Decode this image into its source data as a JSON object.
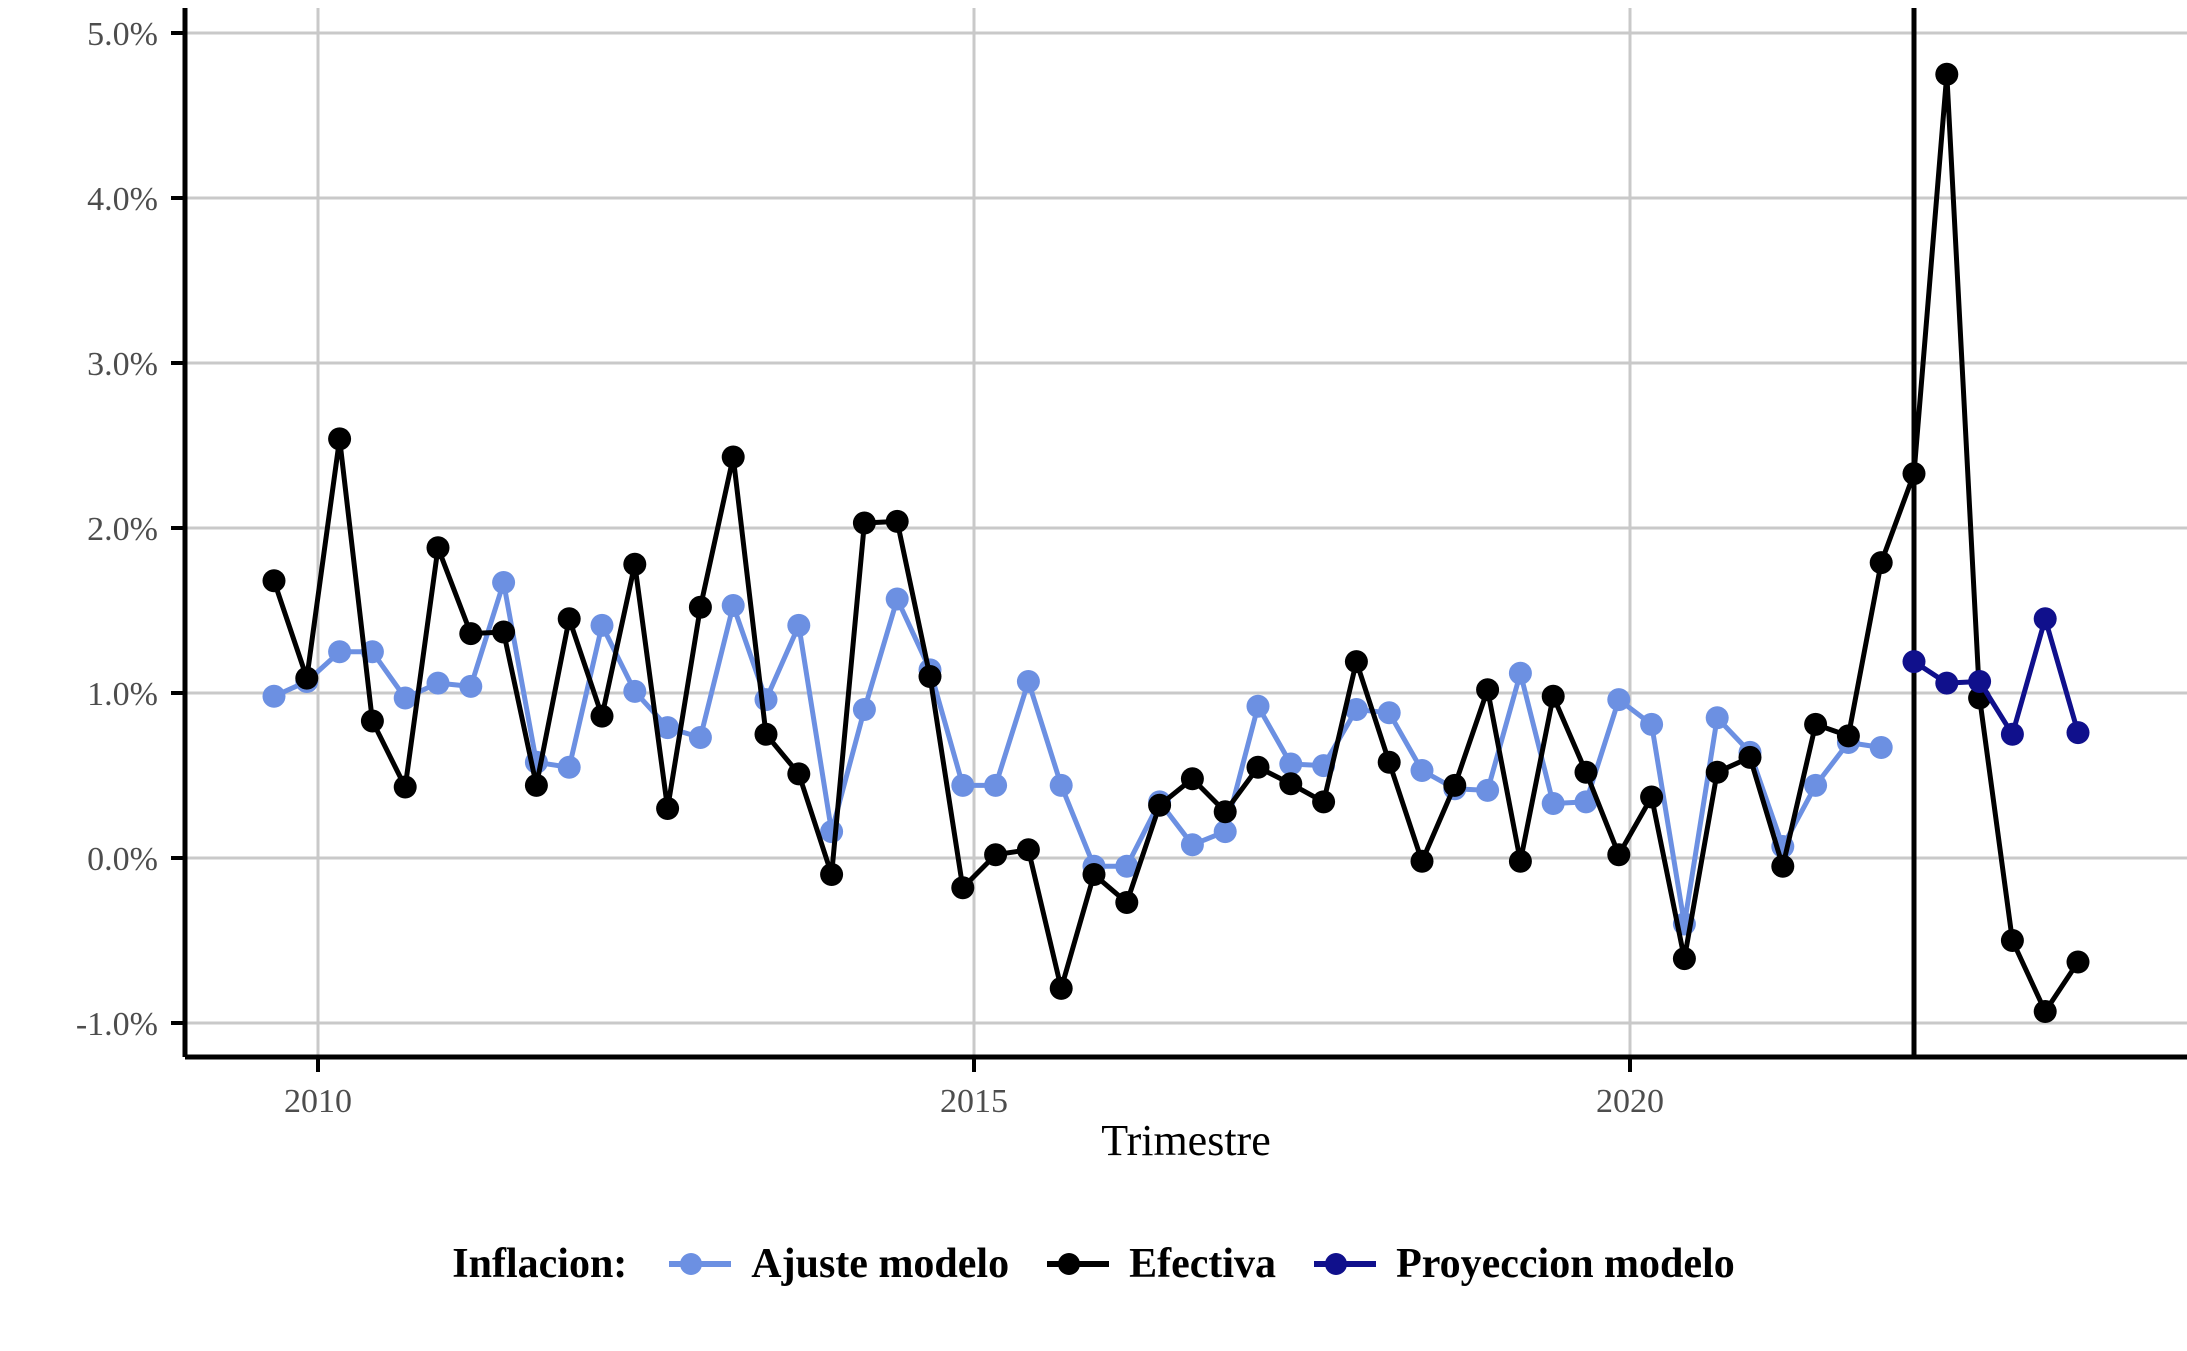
{
  "chart_data": {
    "type": "line",
    "title": "",
    "xlabel": "Trimestre",
    "ylabel": "",
    "legend_title": "Inflacion:",
    "legend_position": "bottom",
    "grid": true,
    "background": "#ffffff",
    "gridline_color": "#c9c9c9",
    "axis_line_color": "#000000",
    "tick_label_color": "#4d4d4d",
    "x_axis": {
      "tick_labels": [
        "2010",
        "2015",
        "2020"
      ],
      "tick_years": [
        2010,
        2015,
        2020
      ]
    },
    "y_axis": {
      "tick_labels": [
        "5.0%",
        "4.0%",
        "3.0%",
        "2.0%",
        "1.0%",
        "0.0%",
        "-1.0%"
      ],
      "tick_values": [
        5,
        4,
        3,
        2,
        1,
        0,
        -1
      ]
    },
    "ylim": [
      -1.2,
      5.15
    ],
    "x_unit": "quarter",
    "quarters": [
      "2009Q3",
      "2009Q4",
      "2010Q1",
      "2010Q2",
      "2010Q3",
      "2010Q4",
      "2011Q1",
      "2011Q2",
      "2011Q3",
      "2011Q4",
      "2012Q1",
      "2012Q2",
      "2012Q3",
      "2012Q4",
      "2013Q1",
      "2013Q2",
      "2013Q3",
      "2013Q4",
      "2014Q1",
      "2014Q2",
      "2014Q3",
      "2014Q4",
      "2015Q1",
      "2015Q2",
      "2015Q3",
      "2015Q4",
      "2016Q1",
      "2016Q2",
      "2016Q3",
      "2016Q4",
      "2017Q1",
      "2017Q2",
      "2017Q3",
      "2017Q4",
      "2018Q1",
      "2018Q2",
      "2018Q3",
      "2018Q4",
      "2019Q1",
      "2019Q2",
      "2019Q3",
      "2019Q4",
      "2020Q1",
      "2020Q2",
      "2020Q3",
      "2020Q4",
      "2021Q1",
      "2021Q2",
      "2021Q3",
      "2021Q4",
      "2022Q1",
      "2022Q2",
      "2022Q3",
      "2022Q4",
      "2023Q1",
      "2023Q2"
    ],
    "divider_quarter": "2022Q1",
    "divider_index": 50,
    "series": [
      {
        "name": "Ajuste modelo",
        "color": "#6c90e2",
        "start_index": 0,
        "values": [
          0.98,
          1.07,
          1.25,
          1.25,
          0.97,
          1.06,
          1.04,
          1.67,
          0.58,
          0.55,
          1.41,
          1.01,
          0.79,
          0.73,
          1.53,
          0.96,
          1.41,
          0.16,
          0.9,
          1.57,
          1.14,
          0.44,
          0.44,
          1.07,
          0.44,
          -0.05,
          -0.05,
          0.34,
          0.08,
          0.16,
          0.92,
          0.57,
          0.56,
          0.9,
          0.88,
          0.53,
          0.42,
          0.41,
          1.12,
          0.33,
          0.34,
          0.96,
          0.81,
          -0.4,
          0.85,
          0.64,
          0.07,
          0.44,
          0.7,
          0.67
        ]
      },
      {
        "name": "Efectiva",
        "color": "#000000",
        "start_index": 0,
        "values": [
          1.68,
          1.09,
          2.54,
          0.83,
          0.43,
          1.88,
          1.36,
          1.37,
          0.44,
          1.45,
          0.86,
          1.78,
          0.3,
          1.52,
          2.43,
          0.75,
          0.51,
          -0.1,
          2.03,
          2.04,
          1.1,
          -0.18,
          0.02,
          0.05,
          -0.79,
          -0.1,
          -0.27,
          0.32,
          0.48,
          0.28,
          0.55,
          0.45,
          0.34,
          1.19,
          0.58,
          -0.02,
          0.44,
          1.02,
          -0.02,
          0.98,
          0.52,
          0.02,
          0.37,
          -0.61,
          0.52,
          0.61,
          -0.05,
          0.81,
          0.74,
          1.79,
          2.33,
          4.75,
          0.97,
          -0.5,
          -0.93,
          -0.63
        ]
      },
      {
        "name": "Proyeccion modelo",
        "color": "#10108c",
        "start_index": 50,
        "values": [
          1.19,
          1.06,
          1.07,
          0.75,
          1.45,
          0.76
        ]
      }
    ]
  },
  "legend": {
    "title": "Inflacion:",
    "items": [
      {
        "label": "Ajuste modelo",
        "color": "#6c90e2"
      },
      {
        "label": "Efectiva",
        "color": "#000000"
      },
      {
        "label": "Proyeccion modelo",
        "color": "#10108c"
      }
    ]
  }
}
